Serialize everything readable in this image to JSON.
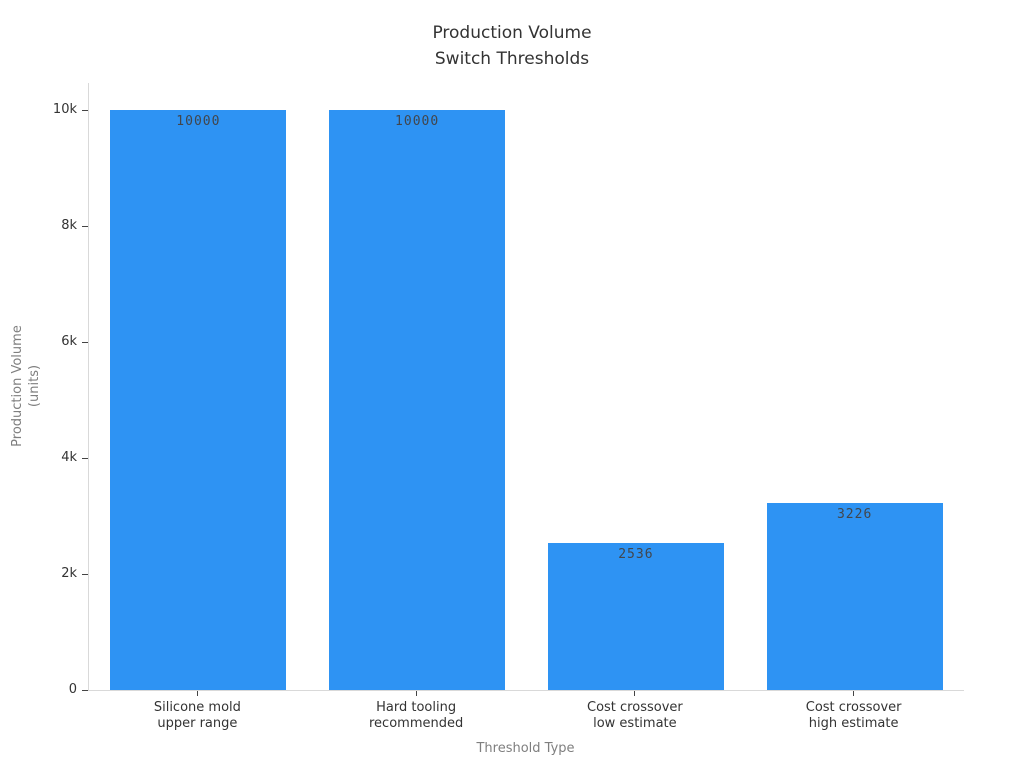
{
  "chart_data": {
    "type": "bar",
    "title_lines": [
      "Production Volume",
      "Switch Thresholds"
    ],
    "xlabel": "Threshold Type",
    "ylabel_lines": [
      "Production Volume",
      "(units)"
    ],
    "categories": [
      [
        "Silicone mold",
        "upper range"
      ],
      [
        "Hard tooling",
        "recommended"
      ],
      [
        "Cost crossover",
        "low estimate"
      ],
      [
        "Cost crossover",
        "high estimate"
      ]
    ],
    "values": [
      10000,
      10000,
      2536,
      3226
    ],
    "value_labels": [
      "10000",
      "10000",
      "2536",
      "3226"
    ],
    "y_axis": {
      "tick_values": [
        0,
        2000,
        4000,
        6000,
        8000,
        10000
      ],
      "tick_labels": [
        "0",
        "2k",
        "4k",
        "6k",
        "8k",
        "10k"
      ],
      "range": [
        0,
        10465
      ]
    },
    "bar_color": "#2e93f3",
    "grid": false,
    "legend": false
  }
}
